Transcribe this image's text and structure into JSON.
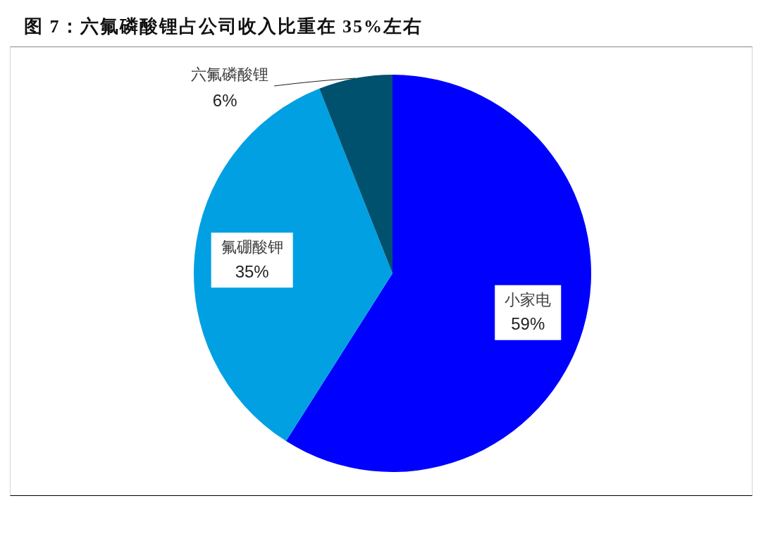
{
  "chart_data": {
    "type": "pie",
    "title": "图 7：六氟磷酸锂占公司收入比重在 35%左右",
    "categories": [
      "小家电",
      "氟硼酸钾",
      "六氟磷酸锂"
    ],
    "values": [
      59,
      35,
      6
    ],
    "colors": [
      "#0000ff",
      "#00a0e3",
      "#00516e"
    ],
    "value_labels": [
      "59%",
      "35%",
      "6%"
    ]
  }
}
